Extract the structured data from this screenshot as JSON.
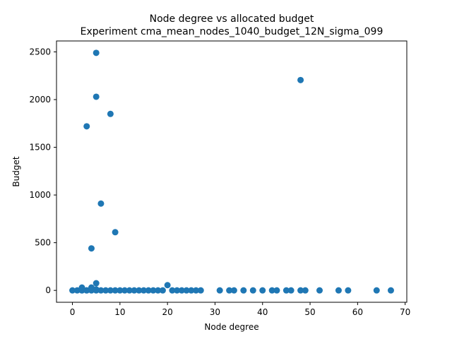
{
  "chart_data": {
    "type": "scatter",
    "title": "Node degree vs allocated budget",
    "subtitle": "Experiment cma_mean_nodes_1040_budget_12N_sigma_099",
    "xlabel": "Node degree",
    "ylabel": "Budget",
    "xlim": [
      -3.35,
      70.35
    ],
    "ylim": [
      -124.5,
      2614.5
    ],
    "xticks": [
      0,
      10,
      20,
      30,
      40,
      50,
      60,
      70
    ],
    "yticks": [
      0,
      500,
      1000,
      1500,
      2000,
      2500
    ],
    "grid": false,
    "marker_color": "#1f77b4",
    "series": [
      {
        "points": [
          [
            0,
            0
          ],
          [
            1,
            0
          ],
          [
            2,
            0
          ],
          [
            2,
            30
          ],
          [
            2,
            0
          ],
          [
            3,
            0
          ],
          [
            3,
            1720
          ],
          [
            3,
            0
          ],
          [
            4,
            440
          ],
          [
            4,
            30
          ],
          [
            4,
            0
          ],
          [
            5,
            2490
          ],
          [
            5,
            2030
          ],
          [
            5,
            75
          ],
          [
            5,
            10
          ],
          [
            5,
            0
          ],
          [
            6,
            910
          ],
          [
            6,
            0
          ],
          [
            7,
            0
          ],
          [
            8,
            1850
          ],
          [
            8,
            0
          ],
          [
            9,
            610
          ],
          [
            9,
            0
          ],
          [
            10,
            0
          ],
          [
            11,
            0
          ],
          [
            12,
            0
          ],
          [
            13,
            0
          ],
          [
            14,
            0
          ],
          [
            15,
            0
          ],
          [
            16,
            0
          ],
          [
            17,
            0
          ],
          [
            18,
            0
          ],
          [
            19,
            0
          ],
          [
            20,
            55
          ],
          [
            21,
            0
          ],
          [
            22,
            0
          ],
          [
            23,
            0
          ],
          [
            24,
            0
          ],
          [
            25,
            0
          ],
          [
            26,
            0
          ],
          [
            27,
            0
          ],
          [
            31,
            0
          ],
          [
            33,
            0
          ],
          [
            34,
            0
          ],
          [
            36,
            0
          ],
          [
            38,
            0
          ],
          [
            40,
            0
          ],
          [
            42,
            0
          ],
          [
            43,
            0
          ],
          [
            45,
            0
          ],
          [
            46,
            0
          ],
          [
            48,
            2205
          ],
          [
            48,
            0
          ],
          [
            49,
            0
          ],
          [
            52,
            0
          ],
          [
            56,
            0
          ],
          [
            58,
            0
          ],
          [
            64,
            0
          ],
          [
            67,
            0
          ]
        ]
      }
    ]
  }
}
